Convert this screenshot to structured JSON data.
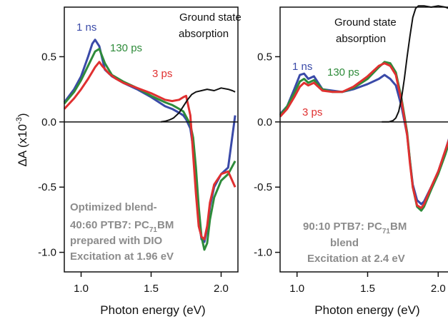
{
  "chart_data": [
    {
      "type": "line",
      "ylabel_main": "ΔA (x10",
      "ylabel_exp": "-3",
      "ylabel_close": ")",
      "xlabel": "Photon energy (eV)",
      "xlim": [
        0.88,
        2.12
      ],
      "ylim": [
        -1.15,
        0.88
      ],
      "x_ticks": [
        1.0,
        1.5,
        2.0
      ],
      "x_tick_labels": [
        "1.0",
        "1.5",
        "2.0"
      ],
      "y_ticks": [
        0.5,
        0.0,
        -0.5,
        -1.0
      ],
      "y_tick_labels": [
        "0.5",
        "0.0",
        "-0.5",
        "-1.0"
      ],
      "series": [
        {
          "name": "1 ns",
          "color": "#3a4aa8",
          "x": [
            0.88,
            0.95,
            1.0,
            1.05,
            1.08,
            1.1,
            1.13,
            1.17,
            1.22,
            1.3,
            1.4,
            1.5,
            1.6,
            1.65,
            1.7,
            1.73,
            1.75,
            1.78,
            1.8,
            1.82,
            1.84,
            1.86,
            1.88,
            1.9,
            1.92,
            1.95,
            2.0,
            2.05,
            2.1
          ],
          "y": [
            0.15,
            0.25,
            0.35,
            0.5,
            0.6,
            0.63,
            0.58,
            0.4,
            0.35,
            0.3,
            0.25,
            0.19,
            0.12,
            0.1,
            0.07,
            0.05,
            0.02,
            -0.05,
            -0.2,
            -0.45,
            -0.75,
            -0.9,
            -0.92,
            -0.82,
            -0.65,
            -0.5,
            -0.4,
            -0.35,
            0.05
          ]
        },
        {
          "name": "130 ps",
          "color": "#2e8b3a",
          "x": [
            0.88,
            0.95,
            1.0,
            1.05,
            1.1,
            1.13,
            1.17,
            1.22,
            1.3,
            1.4,
            1.5,
            1.6,
            1.65,
            1.7,
            1.73,
            1.75,
            1.78,
            1.8,
            1.82,
            1.84,
            1.86,
            1.88,
            1.9,
            1.92,
            1.95,
            2.0,
            2.05,
            2.1
          ],
          "y": [
            0.14,
            0.23,
            0.32,
            0.43,
            0.54,
            0.56,
            0.45,
            0.36,
            0.31,
            0.26,
            0.2,
            0.15,
            0.13,
            0.1,
            0.08,
            0.04,
            -0.02,
            -0.12,
            -0.35,
            -0.65,
            -0.88,
            -0.98,
            -0.93,
            -0.75,
            -0.58,
            -0.45,
            -0.4,
            -0.3
          ]
        },
        {
          "name": "3 ps",
          "color": "#e03030",
          "x": [
            0.88,
            0.95,
            1.0,
            1.05,
            1.1,
            1.13,
            1.15,
            1.2,
            1.25,
            1.3,
            1.4,
            1.5,
            1.6,
            1.65,
            1.7,
            1.73,
            1.75,
            1.78,
            1.8,
            1.82,
            1.84,
            1.86,
            1.88,
            1.9,
            1.92,
            1.95,
            2.0,
            2.05,
            2.1
          ],
          "y": [
            0.1,
            0.18,
            0.25,
            0.33,
            0.42,
            0.46,
            0.43,
            0.37,
            0.33,
            0.3,
            0.26,
            0.22,
            0.17,
            0.16,
            0.17,
            0.19,
            0.2,
            0.05,
            -0.25,
            -0.55,
            -0.8,
            -0.88,
            -0.9,
            -0.8,
            -0.62,
            -0.48,
            -0.4,
            -0.38,
            -0.5
          ]
        },
        {
          "name": "Ground state absorption",
          "color": "#111111",
          "x": [
            1.57,
            1.6,
            1.63,
            1.66,
            1.7,
            1.73,
            1.76,
            1.79,
            1.82,
            1.86,
            1.9,
            1.95,
            2.0,
            2.05,
            2.08,
            2.1
          ],
          "y": [
            0.0,
            0.005,
            0.015,
            0.03,
            0.07,
            0.12,
            0.17,
            0.21,
            0.23,
            0.24,
            0.25,
            0.24,
            0.26,
            0.25,
            0.24,
            0.23
          ]
        }
      ],
      "labels": [
        {
          "text": "1 ns",
          "color": "#3a4aa8"
        },
        {
          "text": "130 ps",
          "color": "#2e8b3a"
        },
        {
          "text": "3 ps",
          "color": "#e03030"
        },
        {
          "text": "Ground state",
          "color": "#111111"
        },
        {
          "text": "absorption",
          "color": "#111111"
        }
      ],
      "annotation": {
        "line1": "Optimized blend-",
        "line2_pre": "40:60 PTB7: PC",
        "line2_sub": "71",
        "line2_post": "BM",
        "line3": "prepared with DIO",
        "line4": "Excitation at 1.96 eV",
        "color": "#8c8c8c"
      }
    },
    {
      "type": "line",
      "xlabel": "Photon energy (eV)",
      "xlim": [
        0.88,
        2.12
      ],
      "ylim": [
        -1.15,
        0.88
      ],
      "x_ticks": [
        1.0,
        1.5,
        2.0
      ],
      "x_tick_labels": [
        "1.0",
        "1.5",
        "2.0"
      ],
      "y_ticks": [
        0.5,
        0.0,
        -0.5,
        -1.0
      ],
      "y_tick_labels": [
        "0.5",
        "0.0",
        "-0.5",
        "-1.0"
      ],
      "series": [
        {
          "name": "1 ns",
          "color": "#3a4aa8",
          "x": [
            0.88,
            0.93,
            0.98,
            1.02,
            1.05,
            1.08,
            1.12,
            1.18,
            1.25,
            1.32,
            1.4,
            1.5,
            1.58,
            1.62,
            1.66,
            1.7,
            1.74,
            1.78,
            1.8,
            1.82,
            1.85,
            1.88,
            1.9,
            1.95,
            2.0,
            2.05,
            2.1
          ],
          "y": [
            0.06,
            0.12,
            0.25,
            0.36,
            0.37,
            0.33,
            0.35,
            0.25,
            0.24,
            0.23,
            0.25,
            0.29,
            0.33,
            0.36,
            0.33,
            0.28,
            0.12,
            -0.1,
            -0.3,
            -0.48,
            -0.6,
            -0.63,
            -0.61,
            -0.5,
            -0.38,
            -0.22,
            -0.05
          ]
        },
        {
          "name": "130 ps",
          "color": "#2e8b3a",
          "x": [
            0.88,
            0.93,
            0.98,
            1.02,
            1.05,
            1.08,
            1.12,
            1.18,
            1.25,
            1.32,
            1.4,
            1.5,
            1.58,
            1.62,
            1.66,
            1.7,
            1.74,
            1.78,
            1.8,
            1.82,
            1.85,
            1.88,
            1.9,
            1.95,
            2.0,
            2.05,
            2.1
          ],
          "y": [
            0.05,
            0.12,
            0.22,
            0.31,
            0.33,
            0.3,
            0.32,
            0.25,
            0.23,
            0.23,
            0.26,
            0.33,
            0.42,
            0.46,
            0.45,
            0.38,
            0.18,
            -0.08,
            -0.3,
            -0.5,
            -0.65,
            -0.68,
            -0.65,
            -0.52,
            -0.4,
            -0.25,
            -0.08
          ]
        },
        {
          "name": "3 ps",
          "color": "#e03030",
          "x": [
            0.88,
            0.93,
            0.98,
            1.02,
            1.05,
            1.08,
            1.12,
            1.18,
            1.25,
            1.32,
            1.4,
            1.5,
            1.58,
            1.62,
            1.66,
            1.7,
            1.74,
            1.78,
            1.8,
            1.82,
            1.85,
            1.88,
            1.9,
            1.95,
            2.0,
            2.05,
            2.1
          ],
          "y": [
            0.04,
            0.1,
            0.19,
            0.27,
            0.3,
            0.28,
            0.3,
            0.24,
            0.23,
            0.23,
            0.27,
            0.35,
            0.43,
            0.45,
            0.43,
            0.36,
            0.16,
            -0.1,
            -0.32,
            -0.5,
            -0.64,
            -0.66,
            -0.63,
            -0.5,
            -0.38,
            -0.22,
            -0.06
          ]
        },
        {
          "name": "Ground state absorption",
          "color": "#111111",
          "x": [
            1.6,
            1.65,
            1.68,
            1.7,
            1.72,
            1.74,
            1.76,
            1.78,
            1.8,
            1.82,
            1.84,
            1.86,
            1.9,
            1.95,
            2.0,
            2.05,
            2.1
          ],
          "y": [
            0.0,
            0.0,
            0.01,
            0.03,
            0.08,
            0.18,
            0.33,
            0.5,
            0.66,
            0.8,
            0.87,
            0.89,
            0.89,
            0.88,
            0.89,
            0.88,
            0.86
          ]
        }
      ],
      "labels": [
        {
          "text": "1 ns",
          "color": "#3a4aa8"
        },
        {
          "text": "130 ps",
          "color": "#2e8b3a"
        },
        {
          "text": "3 ps",
          "color": "#e03030"
        },
        {
          "text": "Ground state",
          "color": "#111111"
        },
        {
          "text": "absorption",
          "color": "#111111"
        }
      ],
      "annotation": {
        "line1_pre": "90:10 PTB7: PC",
        "line1_sub": "71",
        "line1_post": "BM",
        "line2": "blend",
        "line3": "Excitation at 2.4 eV",
        "color": "#8c8c8c"
      }
    }
  ]
}
